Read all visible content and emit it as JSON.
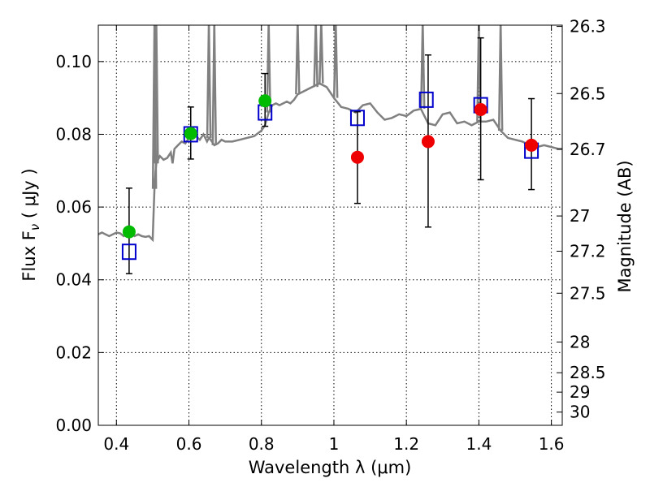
{
  "chart_data": {
    "type": "scatter",
    "title": "",
    "xlabel": "Wavelength  λ (μm)",
    "ylabel": "Flux  F",
    "ylabel_subscript": "ν",
    "ylabel_unit": " ( μJy )",
    "y2label": "Magnitude (AB)",
    "xlim": [
      0.35,
      1.63
    ],
    "ylim": [
      0.0,
      0.11
    ],
    "x_ticks": [
      0.4,
      0.6,
      0.8,
      1.0,
      1.2,
      1.4,
      1.6
    ],
    "x_tick_labels": [
      "0.4",
      "0.6",
      "0.8",
      "1",
      "1.2",
      "1.4",
      "1.6"
    ],
    "y_ticks": [
      0.0,
      0.02,
      0.04,
      0.06,
      0.08,
      0.1
    ],
    "y_tick_labels": [
      "0.00",
      "0.02",
      "0.04",
      "0.06",
      "0.08",
      "0.10"
    ],
    "y2_ticks": [
      26.3,
      26.5,
      26.7,
      27,
      27.2,
      27.5,
      28,
      28.5,
      29,
      30
    ],
    "y2_tick_labels": [
      "26.3",
      "26.5",
      "26.7",
      "27",
      "27.2",
      "27.5",
      "28",
      "28.5",
      "29",
      "30"
    ],
    "grid": true,
    "colors": {
      "spectrum": "#808080",
      "model_box": "#0000cc",
      "observed_green": "#00bb00",
      "observed_red": "#ee0000",
      "errorbar": "#000000"
    },
    "spectrum": {
      "x": [
        0.35,
        0.36,
        0.37,
        0.38,
        0.39,
        0.4,
        0.41,
        0.42,
        0.43,
        0.44,
        0.45,
        0.46,
        0.47,
        0.48,
        0.49,
        0.495,
        0.5,
        0.503,
        0.505,
        0.508,
        0.51,
        0.52,
        0.53,
        0.54,
        0.55,
        0.555,
        0.56,
        0.57,
        0.58,
        0.59,
        0.6,
        0.62,
        0.63,
        0.64,
        0.65,
        0.655,
        0.66,
        0.67,
        0.68,
        0.69,
        0.7,
        0.72,
        0.74,
        0.76,
        0.78,
        0.8,
        0.81,
        0.82,
        0.83,
        0.84,
        0.85,
        0.86,
        0.87,
        0.88,
        0.89,
        0.9,
        0.92,
        0.94,
        0.96,
        0.98,
        1.0,
        1.02,
        1.04,
        1.06,
        1.08,
        1.1,
        1.12,
        1.14,
        1.16,
        1.18,
        1.2,
        1.22,
        1.24,
        1.26,
        1.28,
        1.3,
        1.32,
        1.34,
        1.36,
        1.38,
        1.4,
        1.42,
        1.44,
        1.46,
        1.48,
        1.5,
        1.52,
        1.54,
        1.56,
        1.58,
        1.6,
        1.62,
        1.63
      ],
      "y": [
        0.0525,
        0.053,
        0.0525,
        0.052,
        0.0525,
        0.053,
        0.0528,
        0.052,
        0.0525,
        0.053,
        0.052,
        0.0525,
        0.052,
        0.0518,
        0.052,
        0.0515,
        0.051,
        0.06,
        0.065,
        0.07,
        0.072,
        0.074,
        0.073,
        0.0735,
        0.075,
        0.072,
        0.076,
        0.077,
        0.078,
        0.0775,
        0.079,
        0.0795,
        0.0785,
        0.08,
        0.078,
        0.079,
        0.0785,
        0.077,
        0.0775,
        0.0785,
        0.078,
        0.078,
        0.0785,
        0.079,
        0.0795,
        0.081,
        0.0825,
        0.086,
        0.088,
        0.0885,
        0.088,
        0.0885,
        0.089,
        0.0885,
        0.0895,
        0.091,
        0.092,
        0.093,
        0.094,
        0.093,
        0.09,
        0.0875,
        0.087,
        0.086,
        0.088,
        0.0885,
        0.086,
        0.084,
        0.0845,
        0.0855,
        0.085,
        0.0865,
        0.087,
        0.083,
        0.0825,
        0.0855,
        0.086,
        0.083,
        0.0835,
        0.0825,
        0.0835,
        0.0835,
        0.084,
        0.081,
        0.079,
        0.0785,
        0.078,
        0.077,
        0.0765,
        0.077,
        0.0765,
        0.076,
        0.076
      ],
      "spike_x": [
        0.505,
        0.51,
        0.655,
        0.67,
        0.82,
        0.9,
        0.95,
        0.965,
        1.005,
        1.245,
        1.4,
        1.46
      ]
    },
    "model_points": {
      "x": [
        0.435,
        0.605,
        0.81,
        1.065,
        1.255,
        1.405,
        1.545
      ],
      "y": [
        0.0477,
        0.08,
        0.086,
        0.0845,
        0.0895,
        0.088,
        0.0755
      ]
    },
    "observed_points": {
      "x": [
        0.435,
        0.605,
        0.81,
        1.065,
        1.26,
        1.405,
        1.545
      ],
      "y": [
        0.0532,
        0.0802,
        0.0892,
        0.0737,
        0.078,
        0.0868,
        0.077
      ],
      "yerr_low": [
        0.0417,
        0.0732,
        0.0822,
        0.061,
        0.0545,
        0.0675,
        0.0648
      ],
      "yerr_high": [
        0.0652,
        0.0875,
        0.0967,
        0.0862,
        0.1018,
        0.1065,
        0.0898
      ],
      "color": [
        "green",
        "green",
        "green",
        "red",
        "red",
        "red",
        "red"
      ]
    }
  }
}
